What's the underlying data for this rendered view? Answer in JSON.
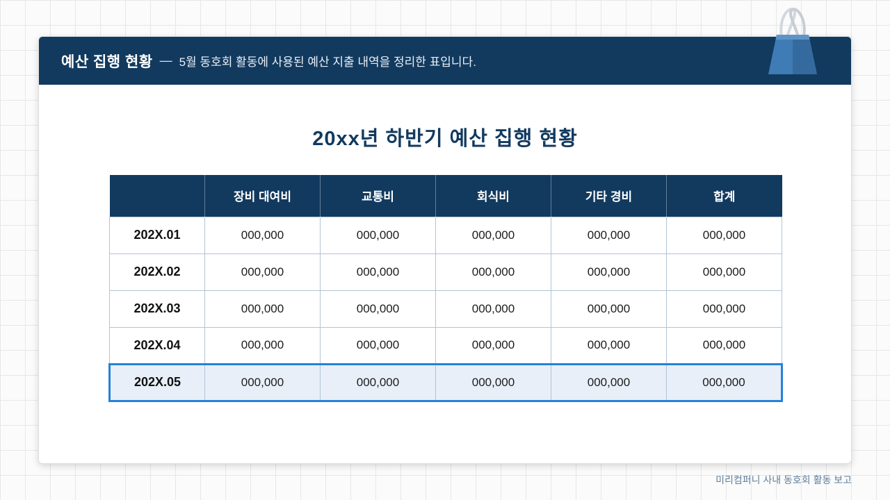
{
  "header": {
    "title": "예산 집행 현황",
    "dash": "—",
    "subtitle": "5월 동호회 활동에 사용된 예산 지출 내역을 정리한 표입니다."
  },
  "body": {
    "title": "20xx년 하반기 예산 집행 현황"
  },
  "table": {
    "columns": [
      "",
      "장비 대여비",
      "교통비",
      "회식비",
      "기타 경비",
      "합계"
    ],
    "rows": [
      {
        "label": "202X.01",
        "values": [
          "000,000",
          "000,000",
          "000,000",
          "000,000",
          "000,000"
        ],
        "highlight": false
      },
      {
        "label": "202X.02",
        "values": [
          "000,000",
          "000,000",
          "000,000",
          "000,000",
          "000,000"
        ],
        "highlight": false
      },
      {
        "label": "202X.03",
        "values": [
          "000,000",
          "000,000",
          "000,000",
          "000,000",
          "000,000"
        ],
        "highlight": false
      },
      {
        "label": "202X.04",
        "values": [
          "000,000",
          "000,000",
          "000,000",
          "000,000",
          "000,000"
        ],
        "highlight": false
      },
      {
        "label": "202X.05",
        "values": [
          "000,000",
          "000,000",
          "000,000",
          "000,000",
          "000,000"
        ],
        "highlight": true
      }
    ]
  },
  "footer": {
    "caption": "미리컴퍼니 사내 동호회 활동 보고"
  },
  "icons": {
    "binder_clip": "binder-clip-icon"
  },
  "colors": {
    "header_navy": "#123a5f",
    "title_navy": "#123a5f",
    "highlight_blue": "#2581d9",
    "highlight_bg": "#e8eff8",
    "cell_border": "#b0c4d4",
    "footer_text": "#5f7f9e"
  }
}
